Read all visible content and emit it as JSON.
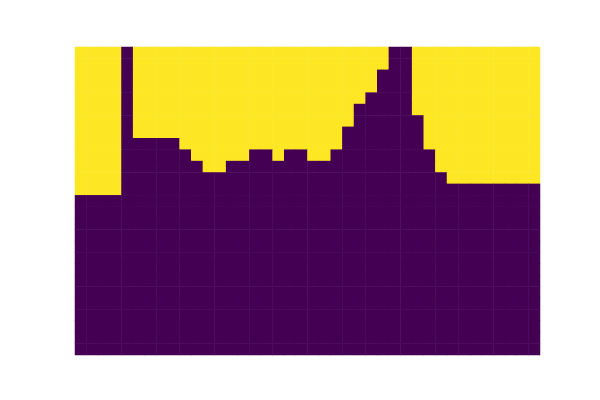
{
  "chart_data": {
    "type": "heatmap",
    "tick_labels": false,
    "grid": false,
    "vlim": [
      0,
      1
    ],
    "cells": [
      [
        1,
        1,
        1,
        1,
        0,
        1,
        1,
        1,
        1,
        1,
        1,
        1,
        1,
        1,
        1,
        1,
        1,
        1,
        1,
        1,
        1,
        1,
        1,
        1,
        1,
        1,
        1,
        0,
        0,
        1,
        1,
        1,
        1,
        1,
        1,
        1,
        1,
        1,
        1,
        1
      ],
      [
        1,
        1,
        1,
        1,
        0,
        1,
        1,
        1,
        1,
        1,
        1,
        1,
        1,
        1,
        1,
        1,
        1,
        1,
        1,
        1,
        1,
        1,
        1,
        1,
        1,
        1,
        1,
        0,
        0,
        1,
        1,
        1,
        1,
        1,
        1,
        1,
        1,
        1,
        1,
        1
      ],
      [
        1,
        1,
        1,
        1,
        0,
        1,
        1,
        1,
        1,
        1,
        1,
        1,
        1,
        1,
        1,
        1,
        1,
        1,
        1,
        1,
        1,
        1,
        1,
        1,
        1,
        1,
        0,
        0,
        0,
        1,
        1,
        1,
        1,
        1,
        1,
        1,
        1,
        1,
        1,
        1
      ],
      [
        1,
        1,
        1,
        1,
        0,
        1,
        1,
        1,
        1,
        1,
        1,
        1,
        1,
        1,
        1,
        1,
        1,
        1,
        1,
        1,
        1,
        1,
        1,
        1,
        1,
        1,
        0,
        0,
        0,
        1,
        1,
        1,
        1,
        1,
        1,
        1,
        1,
        1,
        1,
        1
      ],
      [
        1,
        1,
        1,
        1,
        0,
        1,
        1,
        1,
        1,
        1,
        1,
        1,
        1,
        1,
        1,
        1,
        1,
        1,
        1,
        1,
        1,
        1,
        1,
        1,
        1,
        0,
        0,
        0,
        0,
        1,
        1,
        1,
        1,
        1,
        1,
        1,
        1,
        1,
        1,
        1
      ],
      [
        1,
        1,
        1,
        1,
        0,
        1,
        1,
        1,
        1,
        1,
        1,
        1,
        1,
        1,
        1,
        1,
        1,
        1,
        1,
        1,
        1,
        1,
        1,
        1,
        0,
        0,
        0,
        0,
        0,
        1,
        1,
        1,
        1,
        1,
        1,
        1,
        1,
        1,
        1,
        1
      ],
      [
        1,
        1,
        1,
        1,
        0,
        1,
        1,
        1,
        1,
        1,
        1,
        1,
        1,
        1,
        1,
        1,
        1,
        1,
        1,
        1,
        1,
        1,
        1,
        1,
        0,
        0,
        0,
        0,
        0,
        0,
        1,
        1,
        1,
        1,
        1,
        1,
        1,
        1,
        1,
        1
      ],
      [
        1,
        1,
        1,
        1,
        0,
        1,
        1,
        1,
        1,
        1,
        1,
        1,
        1,
        1,
        1,
        1,
        1,
        1,
        1,
        1,
        1,
        1,
        1,
        0,
        0,
        0,
        0,
        0,
        0,
        0,
        1,
        1,
        1,
        1,
        1,
        1,
        1,
        1,
        1,
        1
      ],
      [
        1,
        1,
        1,
        1,
        0,
        0,
        0,
        0,
        0,
        1,
        1,
        1,
        1,
        1,
        1,
        1,
        1,
        1,
        1,
        1,
        1,
        1,
        1,
        0,
        0,
        0,
        0,
        0,
        0,
        0,
        1,
        1,
        1,
        1,
        1,
        1,
        1,
        1,
        1,
        1
      ],
      [
        1,
        1,
        1,
        1,
        0,
        0,
        0,
        0,
        0,
        0,
        1,
        1,
        1,
        1,
        1,
        0,
        0,
        1,
        0,
        0,
        1,
        1,
        0,
        0,
        0,
        0,
        0,
        0,
        0,
        0,
        0,
        1,
        1,
        1,
        1,
        1,
        1,
        1,
        1,
        1
      ],
      [
        1,
        1,
        1,
        1,
        0,
        0,
        0,
        0,
        0,
        0,
        0,
        1,
        1,
        0,
        0,
        0,
        0,
        0,
        0,
        0,
        0,
        0,
        0,
        0,
        0,
        0,
        0,
        0,
        0,
        0,
        0,
        1,
        1,
        1,
        1,
        1,
        1,
        1,
        1,
        1
      ],
      [
        1,
        1,
        1,
        1,
        0,
        0,
        0,
        0,
        0,
        0,
        0,
        0,
        0,
        0,
        0,
        0,
        0,
        0,
        0,
        0,
        0,
        0,
        0,
        0,
        0,
        0,
        0,
        0,
        0,
        0,
        0,
        0,
        1,
        1,
        1,
        1,
        1,
        1,
        1,
        1
      ],
      [
        1,
        1,
        1,
        1,
        0,
        0,
        0,
        0,
        0,
        0,
        0,
        0,
        0,
        0,
        0,
        0,
        0,
        0,
        0,
        0,
        0,
        0,
        0,
        0,
        0,
        0,
        0,
        0,
        0,
        0,
        0,
        0,
        0,
        0,
        0,
        0,
        0,
        0,
        0,
        0
      ],
      [
        0,
        0,
        0,
        0,
        0,
        0,
        0,
        0,
        0,
        0,
        0,
        0,
        0,
        0,
        0,
        0,
        0,
        0,
        0,
        0,
        0,
        0,
        0,
        0,
        0,
        0,
        0,
        0,
        0,
        0,
        0,
        0,
        0,
        0,
        0,
        0,
        0,
        0,
        0,
        0
      ],
      [
        0,
        0,
        0,
        0,
        0,
        0,
        0,
        0,
        0,
        0,
        0,
        0,
        0,
        0,
        0,
        0,
        0,
        0,
        0,
        0,
        0,
        0,
        0,
        0,
        0,
        0,
        0,
        0,
        0,
        0,
        0,
        0,
        0,
        0,
        0,
        0,
        0,
        0,
        0,
        0
      ],
      [
        0,
        0,
        0,
        0,
        0,
        0,
        0,
        0,
        0,
        0,
        0,
        0,
        0,
        0,
        0,
        0,
        0,
        0,
        0,
        0,
        0,
        0,
        0,
        0,
        0,
        0,
        0,
        0,
        0,
        0,
        0,
        0,
        0,
        0,
        0,
        0,
        0,
        0,
        0,
        0
      ],
      [
        0,
        0,
        0,
        0,
        0,
        0,
        0,
        0,
        0,
        0,
        0,
        0,
        0,
        0,
        0,
        0,
        0,
        0,
        0,
        0,
        0,
        0,
        0,
        0,
        0,
        0,
        0,
        0,
        0,
        0,
        0,
        0,
        0,
        0,
        0,
        0,
        0,
        0,
        0,
        0
      ],
      [
        0,
        0,
        0,
        0,
        0,
        0,
        0,
        0,
        0,
        0,
        0,
        0,
        0,
        0,
        0,
        0,
        0,
        0,
        0,
        0,
        0,
        0,
        0,
        0,
        0,
        0,
        0,
        0,
        0,
        0,
        0,
        0,
        0,
        0,
        0,
        0,
        0,
        0,
        0,
        0
      ],
      [
        0,
        0,
        0,
        0,
        0,
        0,
        0,
        0,
        0,
        0,
        0,
        0,
        0,
        0,
        0,
        0,
        0,
        0,
        0,
        0,
        0,
        0,
        0,
        0,
        0,
        0,
        0,
        0,
        0,
        0,
        0,
        0,
        0,
        0,
        0,
        0,
        0,
        0,
        0,
        0
      ],
      [
        0,
        0,
        0,
        0,
        0,
        0,
        0,
        0,
        0,
        0,
        0,
        0,
        0,
        0,
        0,
        0,
        0,
        0,
        0,
        0,
        0,
        0,
        0,
        0,
        0,
        0,
        0,
        0,
        0,
        0,
        0,
        0,
        0,
        0,
        0,
        0,
        0,
        0,
        0,
        0
      ],
      [
        0,
        0,
        0,
        0,
        0,
        0,
        0,
        0,
        0,
        0,
        0,
        0,
        0,
        0,
        0,
        0,
        0,
        0,
        0,
        0,
        0,
        0,
        0,
        0,
        0,
        0,
        0,
        0,
        0,
        0,
        0,
        0,
        0,
        0,
        0,
        0,
        0,
        0,
        0,
        0
      ],
      [
        0,
        0,
        0,
        0,
        0,
        0,
        0,
        0,
        0,
        0,
        0,
        0,
        0,
        0,
        0,
        0,
        0,
        0,
        0,
        0,
        0,
        0,
        0,
        0,
        0,
        0,
        0,
        0,
        0,
        0,
        0,
        0,
        0,
        0,
        0,
        0,
        0,
        0,
        0,
        0
      ],
      [
        0,
        0,
        0,
        0,
        0,
        0,
        0,
        0,
        0,
        0,
        0,
        0,
        0,
        0,
        0,
        0,
        0,
        0,
        0,
        0,
        0,
        0,
        0,
        0,
        0,
        0,
        0,
        0,
        0,
        0,
        0,
        0,
        0,
        0,
        0,
        0,
        0,
        0,
        0,
        0
      ],
      [
        0,
        0,
        0,
        0,
        0,
        0,
        0,
        0,
        0,
        0,
        0,
        0,
        0,
        0,
        0,
        0,
        0,
        0,
        0,
        0,
        0,
        0,
        0,
        0,
        0,
        0,
        0,
        0,
        0,
        0,
        0,
        0,
        0,
        0,
        0,
        0,
        0,
        0,
        0,
        0
      ],
      [
        0,
        0,
        0,
        0,
        0,
        0,
        0,
        0,
        0,
        0,
        0,
        0,
        0,
        0,
        0,
        0,
        0,
        0,
        0,
        0,
        0,
        0,
        0,
        0,
        0,
        0,
        0,
        0,
        0,
        0,
        0,
        0,
        0,
        0,
        0,
        0,
        0,
        0,
        0,
        0
      ],
      [
        0,
        0,
        0,
        0,
        0,
        0,
        0,
        0,
        0,
        0,
        0,
        0,
        0,
        0,
        0,
        0,
        0,
        0,
        0,
        0,
        0,
        0,
        0,
        0,
        0,
        0,
        0,
        0,
        0,
        0,
        0,
        0,
        0,
        0,
        0,
        0,
        0,
        0,
        0,
        0
      ],
      [
        0,
        0,
        0,
        0,
        0,
        0,
        0,
        0,
        0,
        0,
        0,
        0,
        0,
        0,
        0,
        0,
        0,
        0,
        0,
        0,
        0,
        0,
        0,
        0,
        0,
        0,
        0,
        0,
        0,
        0,
        0,
        0,
        0,
        0,
        0,
        0,
        0,
        0,
        0,
        0
      ]
    ]
  }
}
